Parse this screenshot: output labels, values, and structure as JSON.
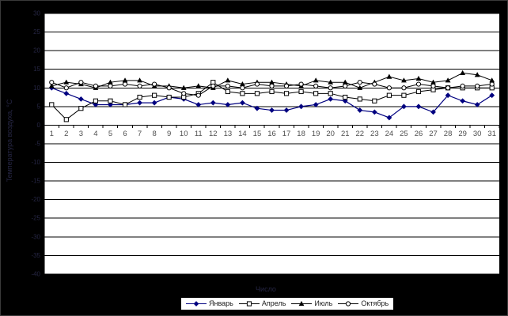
{
  "chart": {
    "background": "#000000",
    "plot_background": "#ffffff",
    "gridline_color": "#000000",
    "y_tick_label_color": "#262644",
    "x_tick_label_color": "#4d4d4d",
    "axis_title_color": "#262644",
    "x_axis_title": "Число",
    "y_axis_title": "Температура воздуха, °С"
  },
  "chart_data": {
    "type": "line",
    "categories": [
      1,
      2,
      3,
      4,
      5,
      6,
      7,
      8,
      9,
      10,
      11,
      12,
      13,
      14,
      15,
      16,
      17,
      18,
      19,
      20,
      21,
      22,
      23,
      24,
      25,
      26,
      27,
      28,
      29,
      30,
      31
    ],
    "ylim": [
      -40,
      30
    ],
    "ytick_step": 5,
    "grid": true,
    "legend_position": "bottom",
    "xlabel": "Число",
    "ylabel": "Температура воздуха, °С",
    "series": [
      {
        "name": "Январь",
        "marker": "diamond-filled",
        "color": "#000080",
        "values": [
          10,
          8.5,
          7,
          5.5,
          5.5,
          5.5,
          6,
          6,
          7.5,
          7,
          5.5,
          6,
          5.5,
          6,
          4.5,
          4,
          4,
          5,
          5.5,
          7,
          6.5,
          4,
          3.5,
          2,
          5,
          5,
          3.5,
          8,
          6.5,
          5.5,
          8
        ]
      },
      {
        "name": "Апрель",
        "marker": "square-open",
        "color": "#000000",
        "values": [
          5.5,
          1.5,
          4.5,
          6.5,
          6.5,
          5.5,
          7.5,
          8,
          7.5,
          7.5,
          8.5,
          11.5,
          9,
          8.5,
          8.5,
          9,
          8.5,
          9,
          8.5,
          8.5,
          7.5,
          7,
          6.5,
          8,
          8,
          9,
          9.5,
          10,
          10,
          10,
          10
        ]
      },
      {
        "name": "Июль",
        "marker": "triangle-filled",
        "color": "#000000",
        "values": [
          10.5,
          11.5,
          11,
          10,
          11.5,
          12,
          12,
          10.5,
          10.5,
          10,
          10.5,
          10,
          12,
          11,
          11.5,
          11.5,
          11,
          10.5,
          12,
          11.5,
          11.5,
          10,
          11.5,
          13,
          12,
          12.5,
          11.5,
          12,
          14,
          13.5,
          12
        ]
      },
      {
        "name": "Октябрь",
        "marker": "circle-open",
        "color": "#000000",
        "values": [
          11.5,
          10,
          11.5,
          10.5,
          10.5,
          11,
          10.5,
          11,
          10,
          8.5,
          8,
          10.5,
          10.5,
          10,
          11,
          10.5,
          10.5,
          11,
          10.5,
          10,
          10.5,
          11.5,
          11,
          10,
          10,
          11,
          10.5,
          10,
          10.5,
          10.5,
          11
        ]
      }
    ]
  }
}
